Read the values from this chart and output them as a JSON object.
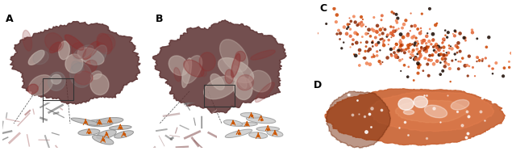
{
  "background_color": "#ffffff",
  "label_A": "A",
  "label_B": "B",
  "label_C": "C",
  "label_D": "D",
  "label_fontsize": 9,
  "label_fontweight": "bold",
  "scatter_n_points": 350,
  "scatter_seed": 42,
  "panel_bg": "#ffffff"
}
